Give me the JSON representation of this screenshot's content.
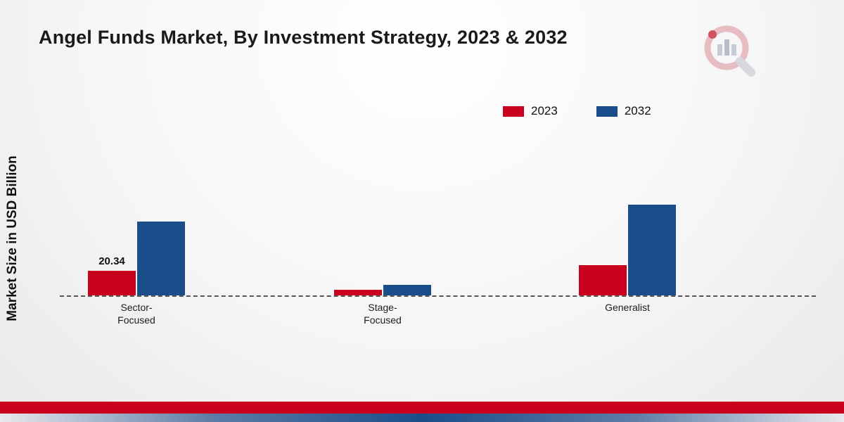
{
  "chart_data": {
    "type": "bar",
    "title": "Angel Funds Market, By Investment Strategy, 2023 & 2032",
    "ylabel": "Market Size in USD Billion",
    "xlabel": "",
    "ylim": [
      0,
      200
    ],
    "grid": false,
    "legend_position": "top-right",
    "baseline_style": "dashed",
    "categories": [
      "Sector-Focused",
      "Stage-Focused",
      "Generalist"
    ],
    "category_label_lines": [
      [
        "Sector-",
        "Focused"
      ],
      [
        "Stage-",
        "Focused"
      ],
      [
        "Generalist"
      ]
    ],
    "series": [
      {
        "name": "2023",
        "color": "#c9001e",
        "values": [
          20.34,
          4.7,
          25.4
        ],
        "labels": [
          "20.34",
          "",
          ""
        ]
      },
      {
        "name": "2032",
        "color": "#1a4e8a",
        "values": [
          61.8,
          8.8,
          75.9
        ],
        "labels": [
          "",
          "",
          ""
        ]
      }
    ]
  },
  "branding": {
    "footer_red": "#c9001e",
    "footer_blue": "#1a4e8a",
    "logo_icon": "magnifier-bar-chart-logo"
  }
}
